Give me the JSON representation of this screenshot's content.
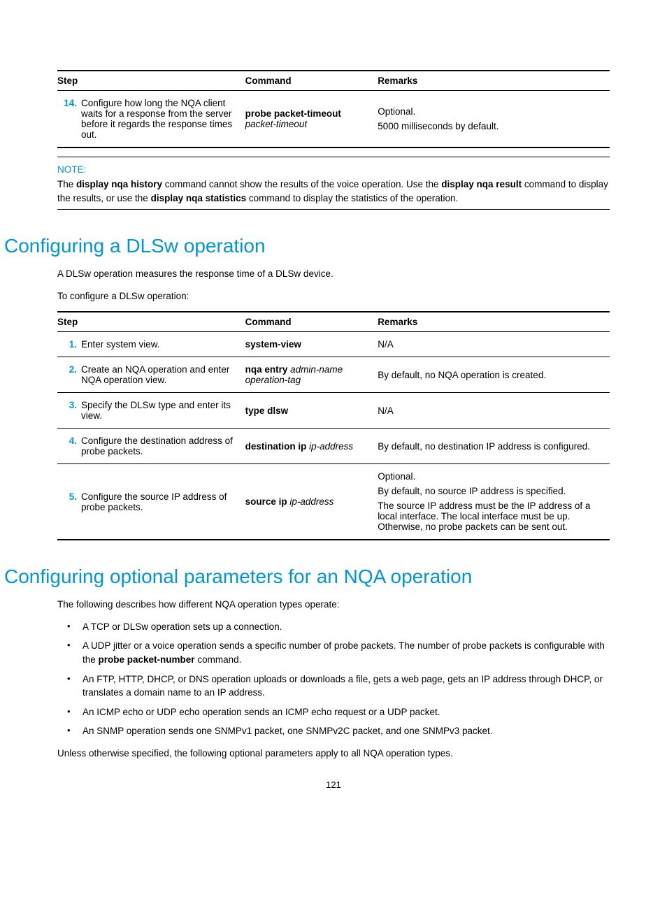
{
  "table1": {
    "headers": {
      "step": "Step",
      "command": "Command",
      "remarks": "Remarks"
    },
    "rows": [
      {
        "num": "14.",
        "step": "Configure how long the NQA client waits for a response from the server before it regards the response times out.",
        "cmd_bold": "probe packet-timeout",
        "cmd_ital": "packet-timeout",
        "remarks": [
          "Optional.",
          "5000 milliseconds by default."
        ]
      }
    ]
  },
  "note": {
    "label": "NOTE:",
    "text_parts": [
      {
        "t": "The ",
        "b": false
      },
      {
        "t": "display nqa history",
        "b": true
      },
      {
        "t": " command cannot show the results of the voice operation. Use the ",
        "b": false
      },
      {
        "t": "display nqa result",
        "b": true
      },
      {
        "t": " command to display the results, or use the ",
        "b": false
      },
      {
        "t": "display nqa statistics",
        "b": true
      },
      {
        "t": " command to display the statistics of the operation.",
        "b": false
      }
    ]
  },
  "section1": {
    "title": "Configuring a DLSw operation",
    "intro1": "A DLSw operation measures the response time of a DLSw device.",
    "intro2": "To configure a DLSw operation:"
  },
  "table2": {
    "headers": {
      "step": "Step",
      "command": "Command",
      "remarks": "Remarks"
    },
    "rows": [
      {
        "num": "1.",
        "step": "Enter system view.",
        "cmd_bold": "system-view",
        "cmd_ital": "",
        "remarks": [
          "N/A"
        ]
      },
      {
        "num": "2.",
        "step": "Create an NQA operation and enter NQA operation view.",
        "cmd_bold": "nqa entry",
        "cmd_ital": "admin-name operation-tag",
        "remarks": [
          "By default, no NQA operation is created."
        ]
      },
      {
        "num": "3.",
        "step": "Specify the DLSw type and enter its view.",
        "cmd_bold": "type dlsw",
        "cmd_ital": "",
        "remarks": [
          "N/A"
        ]
      },
      {
        "num": "4.",
        "step": "Configure the destination address of probe packets.",
        "cmd_bold": "destination ip",
        "cmd_ital": "ip-address",
        "remarks": [
          "By default, no destination IP address is configured."
        ]
      },
      {
        "num": "5.",
        "step": "Configure the source IP address of probe packets.",
        "cmd_bold": "source ip",
        "cmd_ital": "ip-address",
        "remarks": [
          "Optional.",
          "By default, no source IP address is specified.",
          "The source IP address must be the IP address of a local interface. The local interface must be up. Otherwise, no probe packets can be sent out."
        ]
      }
    ]
  },
  "section2": {
    "title": "Configuring optional parameters for an NQA operation",
    "intro": "The following describes how different NQA operation types operate:",
    "bullets": [
      [
        {
          "t": "A TCP or DLSw operation sets up a connection.",
          "b": false
        }
      ],
      [
        {
          "t": "A UDP jitter or a voice operation sends a specific number of probe packets. The number of probe packets is configurable with the ",
          "b": false
        },
        {
          "t": "probe packet-number",
          "b": true
        },
        {
          "t": " command.",
          "b": false
        }
      ],
      [
        {
          "t": "An FTP, HTTP, DHCP, or DNS operation uploads or downloads a file, gets a web page, gets an IP address through DHCP, or translates a domain name to an IP address.",
          "b": false
        }
      ],
      [
        {
          "t": "An ICMP echo or UDP echo operation sends an ICMP echo request or a UDP packet.",
          "b": false
        }
      ],
      [
        {
          "t": "An SNMP operation sends one SNMPv1 packet, one SNMPv2C packet, and one SNMPv3 packet.",
          "b": false
        }
      ]
    ],
    "outro": "Unless otherwise specified, the following optional parameters apply to all NQA operation types."
  },
  "page_number": "121"
}
